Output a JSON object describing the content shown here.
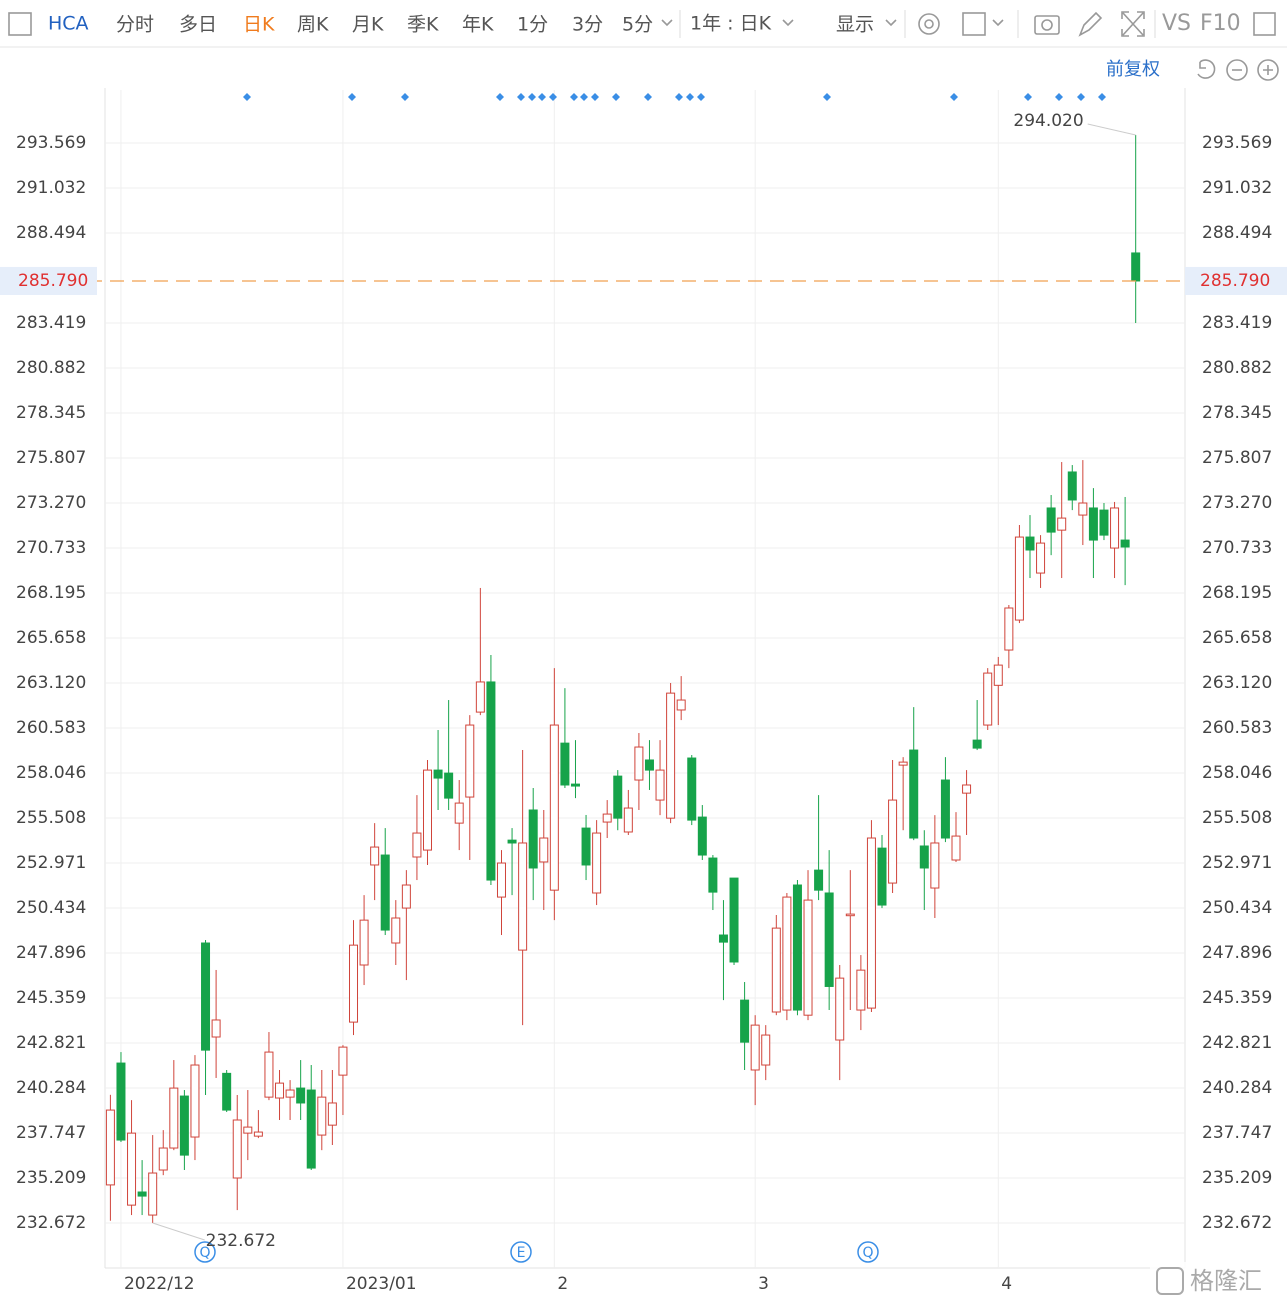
{
  "toolbar": {
    "symbol": "HCA",
    "tabs": [
      "分时",
      "多日",
      "日K",
      "周K",
      "月K",
      "季K",
      "年K",
      "1分",
      "3分",
      "5分"
    ],
    "range": "1年 : 日K",
    "display": "显示",
    "vs": "VS",
    "f10": "F10"
  },
  "adjust": "前复权",
  "event_markers": [
    "Q",
    "E",
    "Q"
  ],
  "watermark": "格隆汇",
  "chart_data": {
    "type": "candlestick",
    "categories": [
      null,
      "2022/12",
      null,
      null,
      null,
      null,
      null,
      null,
      null,
      null,
      null,
      null,
      null,
      null,
      null,
      null,
      null,
      null,
      null,
      null,
      null,
      null,
      "2023/01",
      null,
      null,
      null,
      null,
      null,
      null,
      null,
      null,
      null,
      null,
      null,
      null,
      null,
      null,
      null,
      null,
      null,
      null,
      null,
      "2",
      null,
      null,
      null,
      null,
      null,
      null,
      null,
      null,
      null,
      null,
      null,
      null,
      null,
      null,
      null,
      null,
      null,
      null,
      "3",
      null,
      null,
      null,
      null,
      null,
      null,
      null,
      null,
      null,
      null,
      null,
      null,
      null,
      null,
      null,
      null,
      null,
      null,
      null,
      null,
      null,
      null,
      "4",
      null,
      null,
      null,
      null,
      null,
      null,
      null,
      null,
      null,
      null,
      null,
      null,
      null
    ],
    "open": [
      234.82,
      241.69,
      233.68,
      234.42,
      233.12,
      235.66,
      236.9,
      239.83,
      237.52,
      248.46,
      243.16,
      241.11,
      235.21,
      237.74,
      237.57,
      239.77,
      239.72,
      239.77,
      240.28,
      240.17,
      237.63,
      238.19,
      241.01,
      244.0,
      247.22,
      252.86,
      253.42,
      248.46,
      250.43,
      253.31,
      253.7,
      258.21,
      258.04,
      255.22,
      256.69,
      261.48,
      263.18,
      251.05,
      254.26,
      248.06,
      255.96,
      253.03,
      251.44,
      259.73,
      257.42,
      254.94,
      251.28,
      255.28,
      257.87,
      254.72,
      257.65,
      258.78,
      256.52,
      255.5,
      261.6,
      258.89,
      255.56,
      253.25,
      248.91,
      252.12,
      245.24,
      241.3,
      241.58,
      244.57,
      244.68,
      251.73,
      244.39,
      252.57,
      251.28,
      242.99,
      250.0,
      244.68,
      244.79,
      253.81,
      251.84,
      258.49,
      259.34,
      253.93,
      251.56,
      257.65,
      253.14,
      256.91,
      259.9,
      260.75,
      262.99,
      264.98,
      266.67,
      271.35,
      269.32,
      272.99,
      271.74,
      275.02,
      272.59,
      272.99,
      272.87,
      270.73,
      271.18,
      287.37
    ],
    "high": [
      239.9,
      242.31,
      239.6,
      236.22,
      237.63,
      237.91,
      241.86,
      240.17,
      242.14,
      248.63,
      246.94,
      241.3,
      239.89,
      240.17,
      239.04,
      243.44,
      241.3,
      240.73,
      241.86,
      241.58,
      241.3,
      241.3,
      242.7,
      249.75,
      251.16,
      255.22,
      254.94,
      250.88,
      252.57,
      256.8,
      258.78,
      260.47,
      262.16,
      257.65,
      261.31,
      268.48,
      264.7,
      253.7,
      254.94,
      259.34,
      257.2,
      255.96,
      263.96,
      262.83,
      259.9,
      255.68,
      255.39,
      256.52,
      258.21,
      257.09,
      260.3,
      259.9,
      259.9,
      263.12,
      263.51,
      259.06,
      256.24,
      253.42,
      250.88,
      252.12,
      246.26,
      244.39,
      243.83,
      250.04,
      251.28,
      252.01,
      252.57,
      256.8,
      253.7,
      247.22,
      252.57,
      247.78,
      255.39,
      254.55,
      258.78,
      258.94,
      261.76,
      254.82,
      255.67,
      258.94,
      255.84,
      258.21,
      262.16,
      263.96,
      264.59,
      267.52,
      272.03,
      272.59,
      271.46,
      273.72,
      275.58,
      275.41,
      275.69,
      274.11,
      273.27,
      273.33,
      273.61,
      294.02
    ],
    "low": [
      232.8,
      237.24,
      233.12,
      233.12,
      232.672,
      235.37,
      236.78,
      235.66,
      236.22,
      239.89,
      240.85,
      238.93,
      233.4,
      236.22,
      237.46,
      239.6,
      238.48,
      238.48,
      238.48,
      235.66,
      236.78,
      237.07,
      238.76,
      243.27,
      246.09,
      250.88,
      248.91,
      247.22,
      246.37,
      252.01,
      252.86,
      255.96,
      255.96,
      253.7,
      253.14,
      261.31,
      251.73,
      248.91,
      251.16,
      243.83,
      250.88,
      250.32,
      249.75,
      257.2,
      256.63,
      252.01,
      250.6,
      254.38,
      254.82,
      254.55,
      255.96,
      257.09,
      255.67,
      255.22,
      261.03,
      255.11,
      253.14,
      250.32,
      245.24,
      247.22,
      241.3,
      239.32,
      240.73,
      244.39,
      244.11,
      244.39,
      244.11,
      250.88,
      244.68,
      240.73,
      244.68,
      243.55,
      244.57,
      250.43,
      251.28,
      254.82,
      254.26,
      250.32,
      249.87,
      254.15,
      253.03,
      254.55,
      259.34,
      260.47,
      260.75,
      263.96,
      266.5,
      269.04,
      268.48,
      270.33,
      269.04,
      272.87,
      270.9,
      269.04,
      271.18,
      269.04,
      268.64,
      283.42
    ],
    "close": [
      239.04,
      237.35,
      237.74,
      234.19,
      235.49,
      236.9,
      240.28,
      236.5,
      241.58,
      242.42,
      244.12,
      239.04,
      238.48,
      238.08,
      237.8,
      242.31,
      240.56,
      240.17,
      239.44,
      235.77,
      239.77,
      239.44,
      242.59,
      248.34,
      249.75,
      253.87,
      249.19,
      249.87,
      251.73,
      254.66,
      258.21,
      257.76,
      256.63,
      256.35,
      260.75,
      263.18,
      252.01,
      252.97,
      254.1,
      254.1,
      252.69,
      254.38,
      260.75,
      257.37,
      257.31,
      252.86,
      254.66,
      255.73,
      255.5,
      256.07,
      259.51,
      258.21,
      258.21,
      262.55,
      262.16,
      255.39,
      253.42,
      251.33,
      248.51,
      247.39,
      242.87,
      243.83,
      243.27,
      249.3,
      251.05,
      244.68,
      250.88,
      251.44,
      246.01,
      246.48,
      250.09,
      246.93,
      254.38,
      250.6,
      256.52,
      258.66,
      254.38,
      252.69,
      254.1,
      254.38,
      254.49,
      257.37,
      259.45,
      263.68,
      264.13,
      267.35,
      271.35,
      270.62,
      271.01,
      271.63,
      272.42,
      273.44,
      273.27,
      271.18,
      271.46,
      272.99,
      270.79,
      285.79
    ],
    "ylim": [
      230.135,
      296.558
    ],
    "yticks": [
      232.672,
      235.209,
      237.747,
      240.284,
      242.821,
      245.359,
      247.896,
      250.434,
      252.971,
      255.508,
      258.046,
      260.583,
      {
        "value": 263.12,
        "label": "263.120"
      },
      265.658,
      268.195,
      270.733,
      {
        "value": 273.27,
        "label": "273.270"
      },
      275.807,
      278.345,
      280.882,
      283.419,
      288.494,
      291.032,
      293.569
    ],
    "last_price": {
      "value": 285.79,
      "label": "285.790"
    },
    "annotations": [
      {
        "value": 294.02,
        "label": "294.020"
      },
      {
        "value": 232.672,
        "label": "232.672"
      }
    ],
    "up_color": "#d0443a",
    "down_color": "#16a34a",
    "last_price_color": "#f0a050",
    "grid": true
  }
}
